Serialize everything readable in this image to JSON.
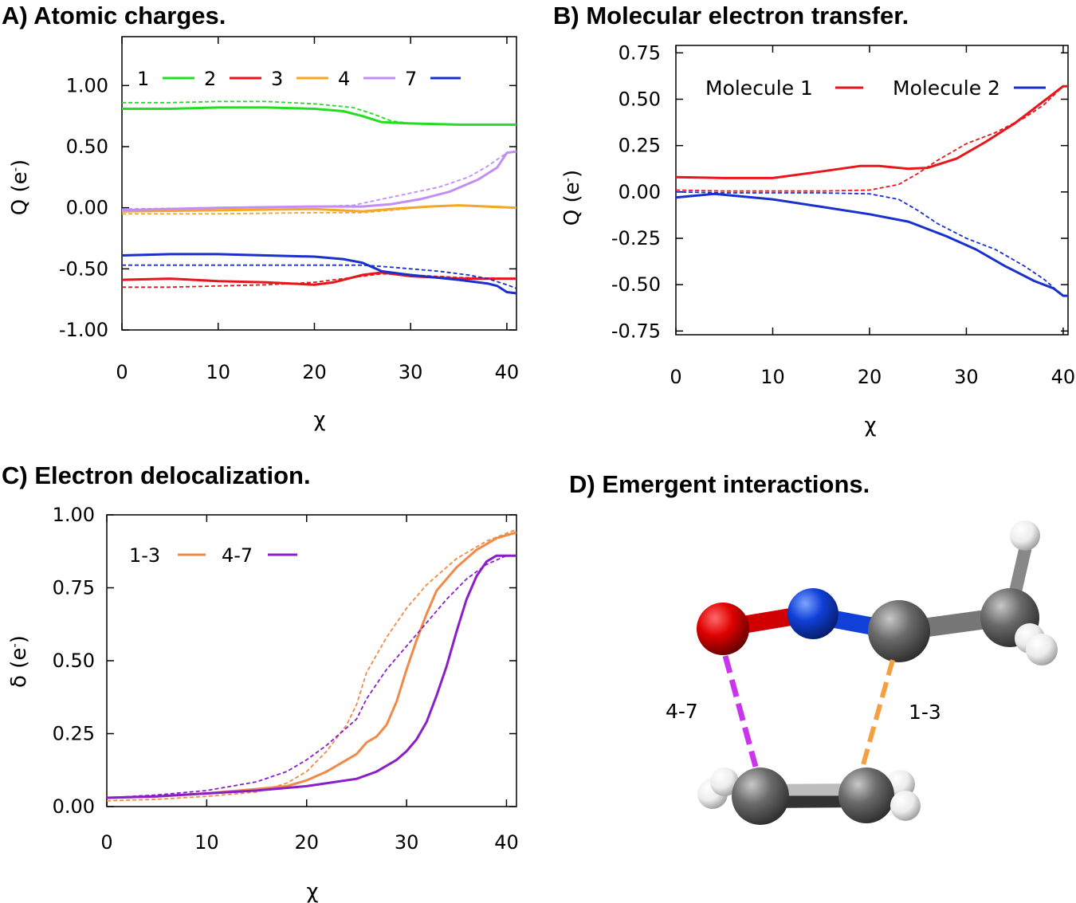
{
  "chart_data": [
    {
      "panel": "A",
      "type": "line",
      "title": "A) Atomic charges.",
      "xlabel": "χ",
      "ylabel_main": "Q (e",
      "ylabel_sup": "-",
      "ylabel_close": ")",
      "xlim": [
        0,
        41
      ],
      "ylim": [
        -1.0,
        1.4
      ],
      "xticks": [
        "0",
        "10",
        "20",
        "30",
        "40"
      ],
      "yticks": [
        "1.00",
        "0.50",
        "0.00",
        "-0.50",
        "-1.00"
      ],
      "ytick_values": [
        1.0,
        0.5,
        0.0,
        -0.5,
        -1.0
      ],
      "legend_position": "top-left",
      "series": [
        {
          "name": "1",
          "color": "#22dd22",
          "solid": [
            [
              0,
              0.81
            ],
            [
              5,
              0.81
            ],
            [
              10,
              0.82
            ],
            [
              15,
              0.82
            ],
            [
              20,
              0.81
            ],
            [
              23,
              0.79
            ],
            [
              25,
              0.75
            ],
            [
              27,
              0.7
            ],
            [
              30,
              0.69
            ],
            [
              35,
              0.68
            ],
            [
              41,
              0.68
            ]
          ],
          "dashed": [
            [
              0,
              0.86
            ],
            [
              5,
              0.86
            ],
            [
              10,
              0.87
            ],
            [
              15,
              0.87
            ],
            [
              20,
              0.85
            ],
            [
              24,
              0.82
            ],
            [
              26,
              0.77
            ],
            [
              28,
              0.71
            ],
            [
              30,
              0.69
            ],
            [
              35,
              0.68
            ],
            [
              41,
              0.68
            ]
          ]
        },
        {
          "name": "2",
          "color": "#e8161c",
          "solid": [
            [
              0,
              -0.59
            ],
            [
              5,
              -0.58
            ],
            [
              10,
              -0.6
            ],
            [
              15,
              -0.61
            ],
            [
              20,
              -0.63
            ],
            [
              22,
              -0.61
            ],
            [
              25,
              -0.55
            ],
            [
              27,
              -0.53
            ],
            [
              30,
              -0.56
            ],
            [
              35,
              -0.58
            ],
            [
              41,
              -0.58
            ]
          ],
          "dashed": [
            [
              0,
              -0.65
            ],
            [
              5,
              -0.65
            ],
            [
              10,
              -0.64
            ],
            [
              15,
              -0.63
            ],
            [
              20,
              -0.61
            ],
            [
              25,
              -0.56
            ],
            [
              27,
              -0.54
            ],
            [
              30,
              -0.55
            ],
            [
              35,
              -0.57
            ],
            [
              41,
              -0.58
            ]
          ]
        },
        {
          "name": "3",
          "color": "#f5a623",
          "solid": [
            [
              0,
              -0.03
            ],
            [
              10,
              -0.02
            ],
            [
              20,
              -0.01
            ],
            [
              25,
              -0.03
            ],
            [
              28,
              -0.01
            ],
            [
              32,
              0.01
            ],
            [
              35,
              0.02
            ],
            [
              41,
              0.0
            ]
          ],
          "dashed": [
            [
              0,
              -0.05
            ],
            [
              10,
              -0.05
            ],
            [
              20,
              -0.04
            ],
            [
              25,
              -0.04
            ],
            [
              28,
              -0.02
            ],
            [
              32,
              0.01
            ],
            [
              35,
              0.02
            ],
            [
              41,
              0.0
            ]
          ]
        },
        {
          "name": "4",
          "color": "#c28ef5",
          "solid": [
            [
              0,
              -0.02
            ],
            [
              10,
              0.0
            ],
            [
              20,
              0.01
            ],
            [
              25,
              0.01
            ],
            [
              28,
              0.03
            ],
            [
              31,
              0.07
            ],
            [
              34,
              0.13
            ],
            [
              37,
              0.23
            ],
            [
              39,
              0.33
            ],
            [
              40,
              0.45
            ],
            [
              41,
              0.46
            ]
          ],
          "dashed": [
            [
              0,
              -0.01
            ],
            [
              10,
              0.0
            ],
            [
              20,
              0.01
            ],
            [
              24,
              0.02
            ],
            [
              27,
              0.07
            ],
            [
              30,
              0.12
            ],
            [
              33,
              0.17
            ],
            [
              36,
              0.25
            ],
            [
              38,
              0.34
            ],
            [
              40,
              0.45
            ],
            [
              41,
              0.46
            ]
          ]
        },
        {
          "name": "7",
          "color": "#1a30cc",
          "solid": [
            [
              0,
              -0.39
            ],
            [
              5,
              -0.38
            ],
            [
              10,
              -0.38
            ],
            [
              15,
              -0.39
            ],
            [
              20,
              -0.4
            ],
            [
              23,
              -0.42
            ],
            [
              25,
              -0.45
            ],
            [
              27,
              -0.52
            ],
            [
              30,
              -0.55
            ],
            [
              35,
              -0.59
            ],
            [
              38,
              -0.62
            ],
            [
              39,
              -0.64
            ],
            [
              40,
              -0.69
            ],
            [
              41,
              -0.7
            ]
          ],
          "dashed": [
            [
              0,
              -0.47
            ],
            [
              10,
              -0.47
            ],
            [
              20,
              -0.47
            ],
            [
              25,
              -0.47
            ],
            [
              27,
              -0.48
            ],
            [
              30,
              -0.5
            ],
            [
              33,
              -0.52
            ],
            [
              36,
              -0.55
            ],
            [
              38,
              -0.58
            ],
            [
              40,
              -0.63
            ],
            [
              41,
              -0.66
            ]
          ]
        }
      ]
    },
    {
      "panel": "B",
      "type": "line",
      "title": "B) Molecular electron transfer.",
      "xlabel": "χ",
      "ylabel_main": "Q (e",
      "ylabel_sup": "-",
      "ylabel_close": ")",
      "xlim": [
        0,
        40.5
      ],
      "ylim": [
        -0.77,
        0.79
      ],
      "xticks": [
        "0",
        "10",
        "20",
        "30",
        "40"
      ],
      "yticks": [
        "0.75",
        "0.50",
        "0.25",
        "0.00",
        "-0.25",
        "-0.50",
        "-0.75"
      ],
      "ytick_values": [
        0.75,
        0.5,
        0.25,
        0.0,
        -0.25,
        -0.5,
        -0.75
      ],
      "legend_position": "top",
      "series": [
        {
          "name": "Molecule 1",
          "color": "#e8161c",
          "solid": [
            [
              0,
              0.08
            ],
            [
              5,
              0.075
            ],
            [
              10,
              0.075
            ],
            [
              15,
              0.11
            ],
            [
              19,
              0.14
            ],
            [
              21,
              0.14
            ],
            [
              24,
              0.125
            ],
            [
              26,
              0.13
            ],
            [
              29,
              0.18
            ],
            [
              32,
              0.27
            ],
            [
              35,
              0.37
            ],
            [
              38,
              0.49
            ],
            [
              40,
              0.57
            ],
            [
              40.5,
              0.57
            ]
          ],
          "dashed": [
            [
              0,
              0.01
            ],
            [
              5,
              0.005
            ],
            [
              10,
              0.005
            ],
            [
              15,
              0.005
            ],
            [
              20,
              0.01
            ],
            [
              23,
              0.04
            ],
            [
              25,
              0.1
            ],
            [
              27,
              0.17
            ],
            [
              30,
              0.26
            ],
            [
              33,
              0.32
            ],
            [
              36,
              0.4
            ],
            [
              38,
              0.47
            ],
            [
              40,
              0.57
            ],
            [
              40.5,
              0.57
            ]
          ]
        },
        {
          "name": "Molecule 2",
          "color": "#1a30cc",
          "solid": [
            [
              0,
              -0.03
            ],
            [
              4,
              -0.01
            ],
            [
              10,
              -0.04
            ],
            [
              15,
              -0.08
            ],
            [
              20,
              -0.12
            ],
            [
              24,
              -0.16
            ],
            [
              26,
              -0.2
            ],
            [
              28,
              -0.24
            ],
            [
              31,
              -0.31
            ],
            [
              34,
              -0.4
            ],
            [
              37,
              -0.48
            ],
            [
              39,
              -0.52
            ],
            [
              40,
              -0.56
            ],
            [
              40.5,
              -0.56
            ]
          ],
          "dashed": [
            [
              0,
              0.0
            ],
            [
              5,
              -0.005
            ],
            [
              10,
              -0.005
            ],
            [
              15,
              -0.005
            ],
            [
              20,
              -0.01
            ],
            [
              23,
              -0.04
            ],
            [
              25,
              -0.1
            ],
            [
              27,
              -0.17
            ],
            [
              30,
              -0.25
            ],
            [
              33,
              -0.31
            ],
            [
              36,
              -0.4
            ],
            [
              38,
              -0.47
            ],
            [
              40,
              -0.56
            ],
            [
              40.5,
              -0.56
            ]
          ]
        }
      ]
    },
    {
      "panel": "C",
      "type": "line",
      "title": "C) Electron delocalization.",
      "xlabel": "χ",
      "ylabel_main": "δ (e",
      "ylabel_sup": "-",
      "ylabel_close": ")",
      "xlim": [
        0,
        41
      ],
      "ylim": [
        0,
        1.0
      ],
      "xticks": [
        "0",
        "10",
        "20",
        "30",
        "40"
      ],
      "yticks": [
        "1.00",
        "0.75",
        "0.50",
        "0.25",
        "0.00"
      ],
      "ytick_values": [
        1.0,
        0.75,
        0.5,
        0.25,
        0.0
      ],
      "legend_position": "top-left",
      "series": [
        {
          "name": "1-3",
          "color": "#f08a48",
          "solid": [
            [
              0,
              0.03
            ],
            [
              5,
              0.035
            ],
            [
              10,
              0.045
            ],
            [
              15,
              0.06
            ],
            [
              18,
              0.07
            ],
            [
              20,
              0.09
            ],
            [
              22,
              0.12
            ],
            [
              24,
              0.16
            ],
            [
              25,
              0.18
            ],
            [
              26,
              0.22
            ],
            [
              27,
              0.24
            ],
            [
              28,
              0.28
            ],
            [
              29,
              0.36
            ],
            [
              30,
              0.47
            ],
            [
              31,
              0.57
            ],
            [
              32,
              0.66
            ],
            [
              33,
              0.74
            ],
            [
              35,
              0.82
            ],
            [
              37,
              0.88
            ],
            [
              39,
              0.92
            ],
            [
              41,
              0.94
            ]
          ],
          "dashed": [
            [
              0,
              0.02
            ],
            [
              5,
              0.025
            ],
            [
              10,
              0.035
            ],
            [
              15,
              0.05
            ],
            [
              18,
              0.08
            ],
            [
              20,
              0.12
            ],
            [
              22,
              0.19
            ],
            [
              24,
              0.28
            ],
            [
              25,
              0.35
            ],
            [
              26,
              0.46
            ],
            [
              27,
              0.52
            ],
            [
              28,
              0.58
            ],
            [
              30,
              0.68
            ],
            [
              32,
              0.76
            ],
            [
              35,
              0.85
            ],
            [
              38,
              0.91
            ],
            [
              41,
              0.95
            ]
          ]
        },
        {
          "name": "4-7",
          "color": "#8a1ec8",
          "solid": [
            [
              0,
              0.03
            ],
            [
              5,
              0.035
            ],
            [
              10,
              0.045
            ],
            [
              15,
              0.055
            ],
            [
              20,
              0.07
            ],
            [
              23,
              0.085
            ],
            [
              25,
              0.095
            ],
            [
              27,
              0.12
            ],
            [
              29,
              0.16
            ],
            [
              30,
              0.19
            ],
            [
              31,
              0.23
            ],
            [
              32,
              0.29
            ],
            [
              33,
              0.38
            ],
            [
              34,
              0.48
            ],
            [
              35,
              0.6
            ],
            [
              36,
              0.71
            ],
            [
              37,
              0.79
            ],
            [
              38,
              0.84
            ],
            [
              39,
              0.86
            ],
            [
              41,
              0.86
            ]
          ],
          "dashed": [
            [
              0,
              0.03
            ],
            [
              5,
              0.04
            ],
            [
              10,
              0.055
            ],
            [
              15,
              0.085
            ],
            [
              18,
              0.12
            ],
            [
              20,
              0.16
            ],
            [
              22,
              0.21
            ],
            [
              24,
              0.27
            ],
            [
              25,
              0.3
            ],
            [
              26,
              0.37
            ],
            [
              27,
              0.42
            ],
            [
              28,
              0.47
            ],
            [
              30,
              0.55
            ],
            [
              32,
              0.63
            ],
            [
              34,
              0.71
            ],
            [
              36,
              0.78
            ],
            [
              38,
              0.83
            ],
            [
              40,
              0.86
            ],
            [
              41,
              0.86
            ]
          ]
        }
      ]
    }
  ],
  "panel_d": {
    "title": "D) Emergent interactions.",
    "label_left": "4-7",
    "label_right": "1-3",
    "colors": {
      "oxygen": "#e00000",
      "nitrogen": "#1040d8",
      "carbon": "#6a6a6a",
      "hydrogen": "#f2f2f2",
      "bond_47": "#cc33ee",
      "bond_13": "#f5a040"
    }
  }
}
